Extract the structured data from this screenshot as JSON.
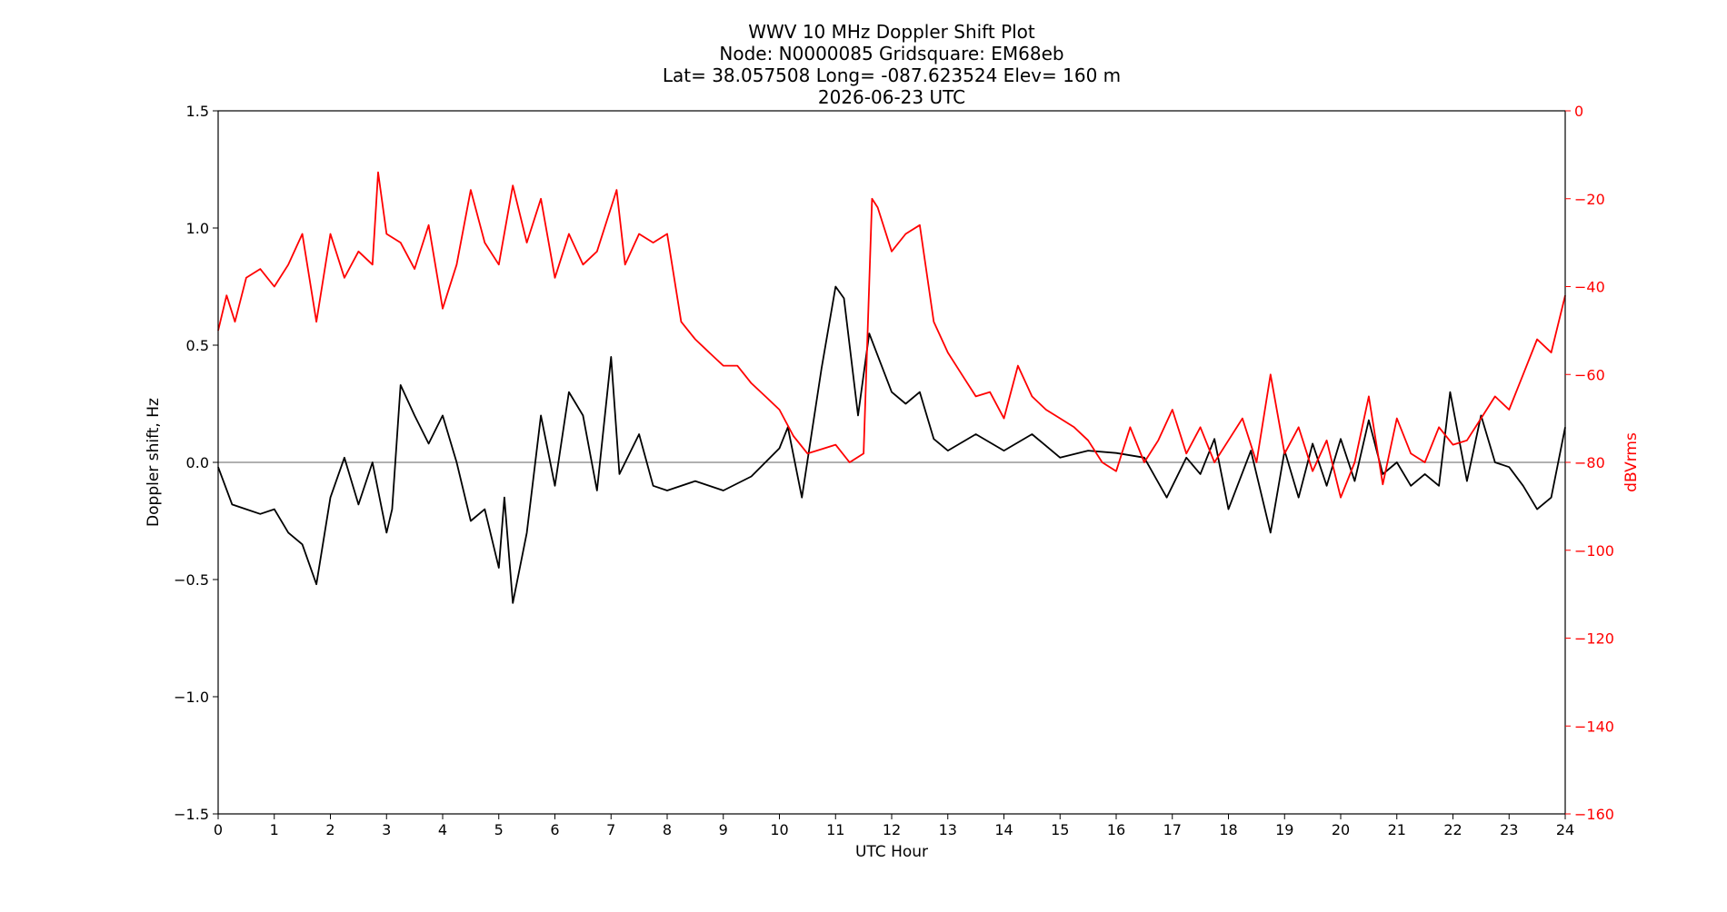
{
  "chart_data": {
    "type": "line",
    "title": [
      "WWV 10 MHz Doppler Shift Plot",
      "Node:  N0000085     Gridsquare:  EM68eb",
      "Lat= 38.057508    Long= -087.623524    Elev= 160 m",
      "2026-06-23  UTC"
    ],
    "xlabel": "UTC Hour",
    "ylabel": "Doppler shift, Hz",
    "y2label": "dBVrms",
    "xlim": [
      0,
      24
    ],
    "ylim": [
      -1.5,
      1.5
    ],
    "y2lim": [
      -160,
      0
    ],
    "xticks": [
      "0",
      "1",
      "2",
      "3",
      "4",
      "5",
      "6",
      "7",
      "8",
      "9",
      "10",
      "11",
      "12",
      "13",
      "14",
      "15",
      "16",
      "17",
      "18",
      "19",
      "20",
      "21",
      "22",
      "23",
      "24"
    ],
    "yticks": [
      "−1.5",
      "−1.0",
      "−0.5",
      "0.0",
      "0.5",
      "1.0",
      "1.5"
    ],
    "y2ticks": [
      "−160",
      "−140",
      "−120",
      "−100",
      "−80",
      "−60",
      "−40",
      "−20",
      "0"
    ],
    "grid": false,
    "zero_line": true,
    "colors": {
      "doppler": "#000000",
      "power": "#ff0000",
      "zero_line": "#808080"
    },
    "series": [
      {
        "axis": "left",
        "x": [
          0,
          0.25,
          0.5,
          0.75,
          1,
          1.25,
          1.5,
          1.75,
          2,
          2.25,
          2.5,
          2.75,
          3,
          3.1,
          3.25,
          3.5,
          3.75,
          4,
          4.25,
          4.5,
          4.75,
          5,
          5.1,
          5.25,
          5.5,
          5.75,
          6,
          6.25,
          6.5,
          6.75,
          7,
          7.15,
          7.5,
          7.75,
          8,
          8.5,
          9,
          9.5,
          10,
          10.15,
          10.4,
          10.75,
          11,
          11.15,
          11.4,
          11.6,
          12,
          12.25,
          12.5,
          12.75,
          13,
          13.5,
          14,
          14.5,
          15,
          15.5,
          16,
          16.5,
          16.9,
          17.25,
          17.5,
          17.75,
          18,
          18.4,
          18.75,
          19,
          19.25,
          19.5,
          19.75,
          20,
          20.25,
          20.5,
          20.75,
          21,
          21.25,
          21.5,
          21.75,
          21.95,
          22.25,
          22.5,
          22.75,
          23,
          23.25,
          23.5,
          23.75,
          24
        ],
        "y": [
          -0.02,
          -0.18,
          -0.2,
          -0.22,
          -0.2,
          -0.3,
          -0.35,
          -0.52,
          -0.15,
          0.02,
          -0.18,
          0.0,
          -0.3,
          -0.2,
          0.33,
          0.2,
          0.08,
          0.2,
          0.0,
          -0.25,
          -0.2,
          -0.45,
          -0.15,
          -0.6,
          -0.3,
          0.2,
          -0.1,
          0.3,
          0.2,
          -0.12,
          0.45,
          -0.05,
          0.12,
          -0.1,
          -0.12,
          -0.08,
          -0.12,
          -0.06,
          0.06,
          0.15,
          -0.15,
          0.4,
          0.75,
          0.7,
          0.2,
          0.55,
          0.3,
          0.25,
          0.3,
          0.1,
          0.05,
          0.12,
          0.05,
          0.12,
          0.02,
          0.05,
          0.04,
          0.02,
          -0.15,
          0.02,
          -0.05,
          0.1,
          -0.2,
          0.05,
          -0.3,
          0.05,
          -0.15,
          0.08,
          -0.1,
          0.1,
          -0.08,
          0.18,
          -0.05,
          0.0,
          -0.1,
          -0.05,
          -0.1,
          0.3,
          -0.08,
          0.2,
          0.0,
          -0.02,
          -0.1,
          -0.2,
          -0.15,
          0.15
        ]
      },
      {
        "axis": "right",
        "x": [
          0,
          0.15,
          0.3,
          0.5,
          0.75,
          1,
          1.25,
          1.5,
          1.75,
          2,
          2.25,
          2.5,
          2.75,
          2.85,
          3,
          3.25,
          3.5,
          3.75,
          4,
          4.25,
          4.5,
          4.75,
          5,
          5.25,
          5.5,
          5.75,
          6,
          6.25,
          6.5,
          6.75,
          7,
          7.1,
          7.25,
          7.5,
          7.75,
          8,
          8.25,
          8.5,
          8.75,
          9,
          9.25,
          9.5,
          9.75,
          10,
          10.25,
          10.5,
          10.75,
          11,
          11.25,
          11.5,
          11.65,
          11.75,
          12,
          12.25,
          12.5,
          12.75,
          13,
          13.25,
          13.5,
          13.75,
          14,
          14.25,
          14.5,
          14.75,
          15,
          15.25,
          15.5,
          15.75,
          16,
          16.25,
          16.5,
          16.75,
          17,
          17.25,
          17.5,
          17.75,
          18,
          18.25,
          18.5,
          18.75,
          19,
          19.25,
          19.5,
          19.75,
          20,
          20.25,
          20.5,
          20.75,
          21,
          21.25,
          21.5,
          21.75,
          22,
          22.25,
          22.5,
          22.75,
          23,
          23.25,
          23.5,
          23.75,
          24
        ],
        "y": [
          -50,
          -42,
          -48,
          -38,
          -36,
          -40,
          -35,
          -28,
          -48,
          -28,
          -38,
          -32,
          -35,
          -14,
          -28,
          -30,
          -36,
          -26,
          -45,
          -35,
          -18,
          -30,
          -35,
          -17,
          -30,
          -20,
          -38,
          -28,
          -35,
          -32,
          -22,
          -18,
          -35,
          -28,
          -30,
          -28,
          -48,
          -52,
          -55,
          -58,
          -58,
          -62,
          -65,
          -68,
          -74,
          -78,
          -77,
          -76,
          -80,
          -78,
          -20,
          -22,
          -32,
          -28,
          -26,
          -48,
          -55,
          -60,
          -65,
          -64,
          -70,
          -58,
          -65,
          -68,
          -70,
          -72,
          -75,
          -80,
          -82,
          -72,
          -80,
          -75,
          -68,
          -78,
          -72,
          -80,
          -75,
          -70,
          -80,
          -60,
          -78,
          -72,
          -82,
          -75,
          -88,
          -80,
          -65,
          -85,
          -70,
          -78,
          -80,
          -72,
          -76,
          -75,
          -70,
          -65,
          -68,
          -60,
          -52,
          -55,
          -42
        ]
      }
    ]
  }
}
